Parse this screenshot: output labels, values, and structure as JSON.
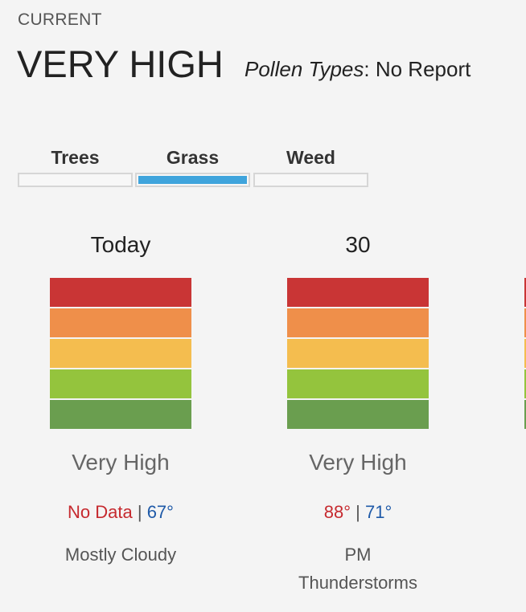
{
  "current": {
    "eyebrow": "CURRENT",
    "level": "VERY HIGH",
    "pollen_types_label": "Pollen Types",
    "pollen_types_value": "No Report"
  },
  "tabs": [
    {
      "label": "Trees",
      "active": false
    },
    {
      "label": "Grass",
      "active": true
    },
    {
      "label": "Weed",
      "active": false
    }
  ],
  "meter_colors": [
    "#c93535",
    "#ef8f4a",
    "#f4bd4f",
    "#94c43d",
    "#6a9e4f"
  ],
  "days": [
    {
      "title": "Today",
      "level": "Very High",
      "high": "No Data",
      "separator": " | ",
      "low": "67°",
      "condition": "Mostly Cloudy"
    },
    {
      "title": "30",
      "level": "Very High",
      "high": "88°",
      "separator": " | ",
      "low": "71°",
      "condition": "PM Thunderstorms"
    }
  ]
}
